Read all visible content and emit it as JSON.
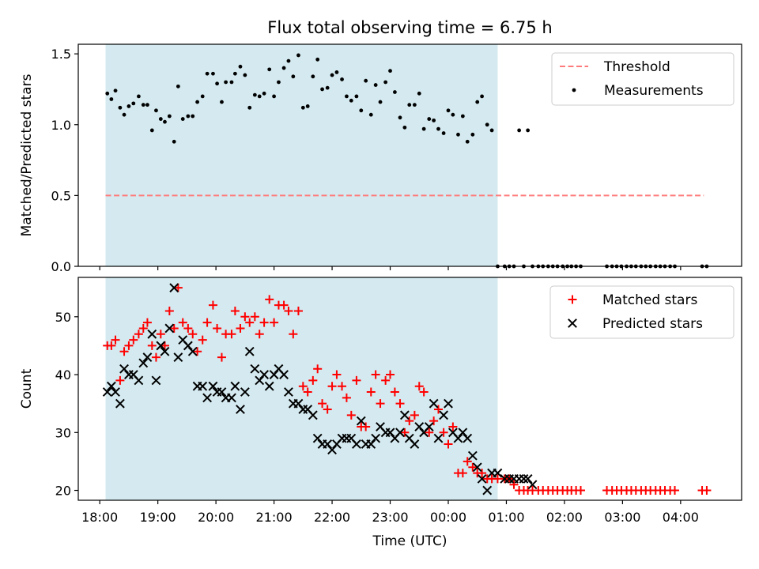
{
  "title": "Flux total observing time = 6.75 h",
  "colors": {
    "shade": "#d4eaf0",
    "threshold": "#ff7b7b",
    "measurements": "#000000",
    "matched": "#ff0000",
    "predicted": "#000000"
  },
  "chart_data": [
    {
      "type": "scatter",
      "ylabel": "Matched/Predicted stars",
      "xlabel": "",
      "xlim": [
        17.63,
        29.05
      ],
      "ylim": [
        0.0,
        1.5677
      ],
      "yticks": [
        0.0,
        0.5,
        1.0,
        1.5
      ],
      "ytick_labels": [
        "0.0",
        "0.5",
        "1.0",
        "1.5"
      ],
      "shaded_span": [
        18.1,
        24.85
      ],
      "legend_position": "top-right",
      "threshold": {
        "name": "Threshold",
        "y": 0.5,
        "x_range": [
          18.1,
          28.4
        ]
      },
      "series": [
        {
          "name": "Measurements",
          "marker": "dot",
          "x": [
            18.13,
            18.2,
            18.27,
            18.35,
            18.42,
            18.5,
            18.58,
            18.67,
            18.75,
            18.82,
            18.9,
            18.97,
            19.05,
            19.12,
            19.2,
            19.28,
            19.35,
            19.43,
            19.52,
            19.6,
            19.68,
            19.77,
            19.85,
            19.95,
            20.02,
            20.1,
            20.17,
            20.27,
            20.33,
            20.42,
            20.5,
            20.58,
            20.67,
            20.75,
            20.83,
            20.92,
            21.0,
            21.08,
            21.17,
            21.25,
            21.33,
            21.42,
            21.5,
            21.58,
            21.67,
            21.75,
            21.83,
            21.92,
            22.0,
            22.08,
            22.17,
            22.25,
            22.33,
            22.42,
            22.5,
            22.58,
            22.67,
            22.75,
            22.83,
            22.92,
            23.0,
            23.08,
            23.17,
            23.25,
            23.33,
            23.42,
            23.5,
            23.58,
            23.67,
            23.75,
            23.83,
            23.92,
            24.0,
            24.08,
            24.17,
            24.25,
            24.33,
            24.42,
            24.5,
            24.58,
            24.67,
            24.75,
            24.85,
            24.97,
            25.05,
            25.13,
            25.22,
            25.3,
            25.37,
            25.45,
            25.55,
            25.63,
            25.72,
            25.8,
            25.88,
            25.97,
            26.05,
            26.12,
            26.2,
            26.28,
            26.73,
            26.82,
            26.9,
            26.98,
            27.07,
            27.15,
            27.23,
            27.32,
            27.4,
            27.48,
            27.57,
            27.65,
            27.73,
            27.82,
            27.9,
            28.37,
            28.45
          ],
          "y": [
            1.22,
            1.18,
            1.24,
            1.12,
            1.07,
            1.13,
            1.15,
            1.2,
            1.14,
            1.14,
            0.96,
            1.1,
            1.04,
            1.02,
            1.06,
            0.88,
            1.27,
            1.04,
            1.06,
            1.06,
            1.16,
            1.2,
            1.36,
            1.36,
            1.29,
            1.16,
            1.3,
            1.3,
            1.36,
            1.41,
            1.35,
            1.12,
            1.21,
            1.2,
            1.22,
            1.39,
            1.2,
            1.3,
            1.4,
            1.45,
            1.34,
            1.49,
            1.12,
            1.13,
            1.34,
            1.46,
            1.25,
            1.26,
            1.35,
            1.37,
            1.32,
            1.2,
            1.17,
            1.2,
            1.1,
            1.31,
            1.07,
            1.28,
            1.16,
            1.3,
            1.38,
            1.23,
            1.05,
            0.98,
            1.14,
            1.14,
            1.22,
            0.97,
            1.04,
            1.03,
            0.97,
            0.94,
            1.1,
            1.07,
            0.93,
            1.06,
            0.88,
            0.93,
            1.16,
            1.2,
            1.0,
            0.96,
            0.0,
            0.0,
            0.0,
            0.0,
            0.96,
            0.0,
            0.96,
            0.0,
            0.0,
            0.0,
            0.0,
            0.0,
            0.0,
            0.0,
            0.0,
            0.0,
            0.0,
            0.0,
            0.0,
            0.0,
            0.0,
            0.0,
            0.0,
            0.0,
            0.0,
            0.0,
            0.0,
            0.0,
            0.0,
            0.0,
            0.0,
            0.0,
            0.0,
            0.0,
            0.0
          ]
        }
      ]
    },
    {
      "type": "scatter",
      "ylabel": "Count",
      "xlabel": "Time (UTC)",
      "xlim": [
        17.63,
        29.05
      ],
      "ylim": [
        18.3,
        56.8
      ],
      "yticks": [
        20,
        30,
        40,
        50
      ],
      "ytick_labels": [
        "20",
        "30",
        "40",
        "50"
      ],
      "xticks": [
        18,
        19,
        20,
        21,
        22,
        23,
        24,
        25,
        26,
        27,
        28
      ],
      "xtick_labels": [
        "18:00",
        "19:00",
        "20:00",
        "21:00",
        "22:00",
        "23:00",
        "00:00",
        "01:00",
        "02:00",
        "03:00",
        "04:00"
      ],
      "shaded_span": [
        18.1,
        24.85
      ],
      "legend_position": "top-right",
      "series": [
        {
          "name": "Matched stars",
          "marker": "plus",
          "x": [
            18.13,
            18.2,
            18.27,
            18.35,
            18.42,
            18.5,
            18.58,
            18.67,
            18.75,
            18.82,
            18.9,
            18.97,
            19.05,
            19.12,
            19.2,
            19.28,
            19.35,
            19.43,
            19.52,
            19.6,
            19.68,
            19.77,
            19.85,
            19.95,
            20.02,
            20.1,
            20.17,
            20.27,
            20.33,
            20.42,
            20.5,
            20.58,
            20.67,
            20.75,
            20.83,
            20.92,
            21.0,
            21.08,
            21.17,
            21.25,
            21.33,
            21.42,
            21.5,
            21.58,
            21.67,
            21.75,
            21.83,
            21.92,
            22.0,
            22.08,
            22.17,
            22.25,
            22.33,
            22.42,
            22.5,
            22.58,
            22.67,
            22.75,
            22.83,
            22.92,
            23.0,
            23.08,
            23.17,
            23.25,
            23.33,
            23.42,
            23.5,
            23.58,
            23.67,
            23.75,
            23.83,
            23.92,
            24.0,
            24.08,
            24.17,
            24.25,
            24.33,
            24.42,
            24.5,
            24.58,
            24.67,
            24.75,
            24.85,
            24.97,
            25.05,
            25.13,
            25.22,
            25.3,
            25.37,
            25.45,
            25.55,
            25.63,
            25.72,
            25.8,
            25.88,
            25.97,
            26.05,
            26.12,
            26.2,
            26.28,
            26.73,
            26.82,
            26.9,
            26.98,
            27.07,
            27.15,
            27.23,
            27.32,
            27.4,
            27.48,
            27.57,
            27.65,
            27.73,
            27.82,
            27.9,
            28.37,
            28.45
          ],
          "y": [
            45,
            45,
            46,
            39,
            44,
            45,
            46,
            47,
            48,
            49,
            45,
            43,
            47,
            45,
            51,
            48,
            55,
            49,
            48,
            47,
            44,
            46,
            49,
            52,
            48,
            43,
            47,
            47,
            51,
            48,
            50,
            49,
            50,
            47,
            49,
            53,
            49,
            52,
            52,
            51,
            47,
            51,
            38,
            37,
            39,
            41,
            35,
            34,
            38,
            40,
            38,
            36,
            33,
            39,
            31,
            31,
            37,
            40,
            35,
            39,
            40,
            37,
            35,
            30,
            32,
            33,
            38,
            37,
            30,
            32,
            34,
            30,
            28,
            31,
            23,
            23,
            25,
            24,
            23,
            23,
            22,
            22,
            22,
            22,
            22,
            21,
            20,
            20,
            20,
            20,
            20,
            20,
            20,
            20,
            20,
            20,
            20,
            20,
            20,
            20,
            20,
            20,
            20,
            20,
            20,
            20,
            20,
            20,
            20,
            20,
            20,
            20,
            20,
            20,
            20,
            20,
            20
          ]
        },
        {
          "name": "Predicted stars",
          "marker": "x",
          "x": [
            18.13,
            18.2,
            18.27,
            18.35,
            18.42,
            18.5,
            18.58,
            18.67,
            18.75,
            18.82,
            18.9,
            18.97,
            19.05,
            19.12,
            19.2,
            19.28,
            19.35,
            19.43,
            19.52,
            19.6,
            19.68,
            19.77,
            19.85,
            19.95,
            20.02,
            20.1,
            20.17,
            20.27,
            20.33,
            20.42,
            20.5,
            20.58,
            20.67,
            20.75,
            20.83,
            20.92,
            21.0,
            21.08,
            21.17,
            21.25,
            21.33,
            21.42,
            21.5,
            21.58,
            21.67,
            21.75,
            21.83,
            21.92,
            22.0,
            22.08,
            22.17,
            22.25,
            22.33,
            22.42,
            22.5,
            22.58,
            22.67,
            22.75,
            22.83,
            22.92,
            23.0,
            23.08,
            23.17,
            23.25,
            23.33,
            23.42,
            23.5,
            23.58,
            23.67,
            23.75,
            23.83,
            23.92,
            24.0,
            24.08,
            24.17,
            24.25,
            24.33,
            24.42,
            24.5,
            24.58,
            24.67,
            24.75,
            24.85,
            24.97,
            25.05,
            25.13,
            25.22,
            25.3,
            25.37,
            25.45
          ],
          "y": [
            37,
            38,
            37,
            35,
            41,
            40,
            40,
            39,
            42,
            43,
            47,
            39,
            45,
            44,
            48,
            55,
            43,
            46,
            45,
            44,
            38,
            38,
            36,
            38,
            37,
            37,
            36,
            36,
            38,
            34,
            37,
            44,
            41,
            39,
            40,
            38,
            40,
            41,
            40,
            37,
            35,
            35,
            34,
            34,
            33,
            29,
            28,
            28,
            27,
            28,
            29,
            29,
            29,
            28,
            32,
            28,
            28,
            29,
            31,
            30,
            30,
            29,
            30,
            33,
            29,
            28,
            31,
            30,
            31,
            35,
            29,
            33,
            35,
            30,
            29,
            30,
            29,
            26,
            24,
            22,
            20,
            23,
            23,
            22,
            22,
            22,
            22,
            22,
            22,
            21
          ]
        }
      ]
    }
  ]
}
